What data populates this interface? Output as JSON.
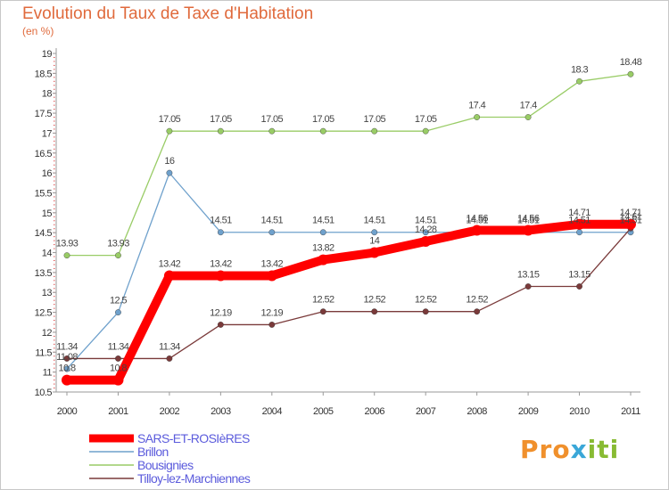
{
  "chart_data": {
    "type": "line",
    "title": "Evolution du Taux de Taxe d'Habitation",
    "subtitle": "(en %)",
    "xlabel": "",
    "ylabel": "",
    "x": [
      2000,
      2001,
      2002,
      2003,
      2004,
      2005,
      2006,
      2007,
      2008,
      2009,
      2010,
      2011
    ],
    "ylim": [
      10.5,
      19
    ],
    "yticks": [
      10.5,
      11,
      11.5,
      12,
      12.5,
      13,
      13.5,
      14,
      14.5,
      15,
      15.5,
      16,
      16.5,
      17,
      17.5,
      18,
      18.5,
      19
    ],
    "legend_position": "bottom-left",
    "grid": false,
    "series": [
      {
        "name": "Bousignies",
        "color": "#99cc66",
        "values": [
          13.93,
          13.93,
          17.05,
          17.05,
          17.05,
          17.05,
          17.05,
          17.05,
          17.4,
          17.4,
          18.3,
          18.48
        ],
        "labels": [
          "13.93",
          "13.93",
          "17.05",
          "17.05",
          "17.05",
          "17.05",
          "17.05",
          "17.05",
          "17.4",
          "17.4",
          "18.3",
          "18.48"
        ]
      },
      {
        "name": "Brillon",
        "color": "#6fa1cc",
        "values": [
          11.08,
          12.5,
          16,
          14.51,
          14.51,
          14.51,
          14.51,
          14.51,
          14.51,
          14.51,
          14.51,
          14.51
        ],
        "labels": [
          "11.08",
          "12.5",
          "16",
          "14.51",
          "14.51",
          "14.51",
          "14.51",
          "14.51",
          "14.51",
          "14.51",
          "14.51",
          "14.51"
        ]
      },
      {
        "name": "Tilloy-lez-Marchiennes",
        "color": "#7a3a3a",
        "values": [
          11.34,
          11.34,
          11.34,
          12.19,
          12.19,
          12.52,
          12.52,
          12.52,
          12.52,
          13.15,
          13.15,
          14.61
        ],
        "labels": [
          "11.34",
          "11.34",
          "11.34",
          "12.19",
          "12.19",
          "12.52",
          "12.52",
          "12.52",
          "12.52",
          "13.15",
          "13.15",
          "14.61"
        ]
      },
      {
        "name": "SARS-ET-ROSIèRES",
        "color": "#ff0000",
        "values": [
          10.8,
          10.8,
          13.42,
          13.42,
          13.42,
          13.82,
          14,
          14.28,
          14.56,
          14.56,
          14.71,
          14.71
        ],
        "labels": [
          "10.8",
          "10.8",
          "13.42",
          "13.42",
          "13.42",
          "13.82",
          "14",
          "14.28",
          "14.56",
          "14.56",
          "14.71",
          "14.71"
        ]
      }
    ],
    "legend": [
      "SARS-ET-ROSIèRES",
      "Brillon",
      "Bousignies",
      "Tilloy-lez-Marchiennes"
    ]
  },
  "logo": {
    "part1": "Pro",
    "part2": "x",
    "part3": "iti"
  }
}
